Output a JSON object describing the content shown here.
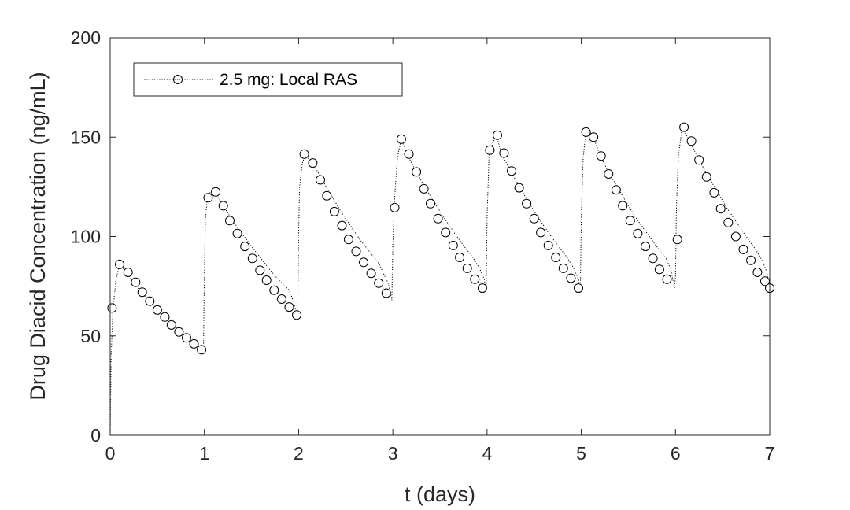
{
  "chart_data": {
    "type": "line",
    "title": "",
    "xlabel": "t (days)",
    "ylabel": "Drug Diacid Concentration (ng/mL)",
    "xlim": [
      0,
      7
    ],
    "ylim": [
      0,
      200
    ],
    "xticks": [
      "0",
      "1",
      "2",
      "3",
      "4",
      "5",
      "6",
      "7"
    ],
    "yticks": [
      "0",
      "50",
      "100",
      "150",
      "200"
    ],
    "grid": false,
    "legend_position": "top-left",
    "colors": {
      "line": "#000000",
      "marker": "#000000",
      "axes": "#262626"
    },
    "series": [
      {
        "name": "2.5 mg: Local RAS",
        "line_style": "dotted",
        "marker": "circle",
        "line": [
          [
            0,
            0
          ],
          [
            0.01,
            40
          ],
          [
            0.03,
            63
          ],
          [
            0.06,
            78
          ],
          [
            0.1,
            86
          ],
          [
            0.17,
            82
          ],
          [
            0.25,
            77
          ],
          [
            0.33,
            72
          ],
          [
            0.42,
            67.5
          ],
          [
            0.5,
            63
          ],
          [
            0.58,
            59.5
          ],
          [
            0.67,
            55.5
          ],
          [
            0.75,
            52
          ],
          [
            0.83,
            49
          ],
          [
            0.92,
            46
          ],
          [
            0.97,
            43
          ],
          [
            0.99,
            42.5
          ],
          [
            1.0,
            80
          ],
          [
            1.01,
            108
          ],
          [
            1.03,
            119
          ],
          [
            1.06,
            122
          ],
          [
            1.1,
            123
          ],
          [
            1.2,
            115.5
          ],
          [
            1.3,
            108
          ],
          [
            1.4,
            101.5
          ],
          [
            1.5,
            95
          ],
          [
            1.6,
            89
          ],
          [
            1.7,
            83
          ],
          [
            1.8,
            77.5
          ],
          [
            1.9,
            73
          ],
          [
            1.95,
            66.5
          ],
          [
            1.99,
            59.5
          ],
          [
            2.0,
            100
          ],
          [
            2.01,
            125
          ],
          [
            2.04,
            137
          ],
          [
            2.07,
            141
          ],
          [
            2.15,
            137
          ],
          [
            2.25,
            128.5
          ],
          [
            2.35,
            120.5
          ],
          [
            2.45,
            112.5
          ],
          [
            2.55,
            105.5
          ],
          [
            2.65,
            98.5
          ],
          [
            2.75,
            92.5
          ],
          [
            2.85,
            86.5
          ],
          [
            2.9,
            81.5
          ],
          [
            2.95,
            76.5
          ],
          [
            2.99,
            68
          ],
          [
            3.0,
            95
          ],
          [
            3.02,
            120
          ],
          [
            3.05,
            140
          ],
          [
            3.09,
            149
          ],
          [
            3.15,
            141.5
          ],
          [
            3.25,
            132.5
          ],
          [
            3.35,
            124
          ],
          [
            3.45,
            116.5
          ],
          [
            3.55,
            109
          ],
          [
            3.65,
            102
          ],
          [
            3.75,
            95.5
          ],
          [
            3.85,
            89.5
          ],
          [
            3.92,
            84
          ],
          [
            3.97,
            78.5
          ],
          [
            3.99,
            73
          ],
          [
            4.0,
            110
          ],
          [
            4.02,
            140
          ],
          [
            4.06,
            147
          ],
          [
            4.1,
            151
          ],
          [
            4.15,
            142
          ],
          [
            4.25,
            133
          ],
          [
            4.35,
            124.5
          ],
          [
            4.45,
            116.5
          ],
          [
            4.55,
            109
          ],
          [
            4.65,
            102
          ],
          [
            4.75,
            95.5
          ],
          [
            4.85,
            89.5
          ],
          [
            4.92,
            84
          ],
          [
            4.97,
            78.5
          ],
          [
            4.99,
            73
          ],
          [
            5.0,
            110
          ],
          [
            5.02,
            140
          ],
          [
            5.05,
            152.5
          ],
          [
            5.13,
            150
          ],
          [
            5.2,
            140.5
          ],
          [
            5.3,
            131.5
          ],
          [
            5.4,
            123.5
          ],
          [
            5.5,
            115.5
          ],
          [
            5.6,
            108
          ],
          [
            5.7,
            101.5
          ],
          [
            5.8,
            95
          ],
          [
            5.9,
            89
          ],
          [
            5.95,
            83.5
          ],
          [
            5.99,
            74
          ],
          [
            6.0,
            80
          ],
          [
            6.01,
            115
          ],
          [
            6.03,
            140
          ],
          [
            6.07,
            155
          ],
          [
            6.15,
            148
          ],
          [
            6.25,
            138.5
          ],
          [
            6.35,
            130
          ],
          [
            6.45,
            122
          ],
          [
            6.55,
            114
          ],
          [
            6.65,
            107
          ],
          [
            6.75,
            100
          ],
          [
            6.85,
            93.5
          ],
          [
            6.92,
            88
          ],
          [
            6.97,
            82
          ],
          [
            7.0,
            74
          ]
        ],
        "markers": [
          [
            0.02,
            64
          ],
          [
            0.1,
            86
          ],
          [
            0.19,
            82
          ],
          [
            0.27,
            77
          ],
          [
            0.34,
            72
          ],
          [
            0.42,
            67.5
          ],
          [
            0.5,
            63
          ],
          [
            0.58,
            59.5
          ],
          [
            0.65,
            55.5
          ],
          [
            0.73,
            52
          ],
          [
            0.81,
            49
          ],
          [
            0.89,
            46
          ],
          [
            0.97,
            43
          ],
          [
            1.04,
            119.5
          ],
          [
            1.12,
            122.5
          ],
          [
            1.2,
            115.5
          ],
          [
            1.27,
            108
          ],
          [
            1.35,
            101.5
          ],
          [
            1.43,
            95
          ],
          [
            1.51,
            89
          ],
          [
            1.59,
            83
          ],
          [
            1.66,
            78
          ],
          [
            1.74,
            73
          ],
          [
            1.82,
            68.5
          ],
          [
            1.9,
            64.5
          ],
          [
            1.98,
            60.5
          ],
          [
            2.06,
            141.5
          ],
          [
            2.15,
            137
          ],
          [
            2.23,
            128.5
          ],
          [
            2.3,
            120.5
          ],
          [
            2.38,
            112.5
          ],
          [
            2.46,
            105.5
          ],
          [
            2.53,
            98.5
          ],
          [
            2.61,
            92.5
          ],
          [
            2.69,
            87
          ],
          [
            2.77,
            81.5
          ],
          [
            2.85,
            76.5
          ],
          [
            2.93,
            71.5
          ],
          [
            3.02,
            114.5
          ],
          [
            3.09,
            149
          ],
          [
            3.17,
            141.5
          ],
          [
            3.25,
            132.5
          ],
          [
            3.33,
            124
          ],
          [
            3.4,
            116.5
          ],
          [
            3.48,
            109
          ],
          [
            3.56,
            102
          ],
          [
            3.64,
            95.5
          ],
          [
            3.71,
            89.5
          ],
          [
            3.79,
            84
          ],
          [
            3.87,
            78.5
          ],
          [
            3.95,
            74
          ],
          [
            4.03,
            143.5
          ],
          [
            4.11,
            151
          ],
          [
            4.18,
            142
          ],
          [
            4.26,
            133
          ],
          [
            4.34,
            124.5
          ],
          [
            4.42,
            116.5
          ],
          [
            4.5,
            109
          ],
          [
            4.57,
            102
          ],
          [
            4.65,
            95.5
          ],
          [
            4.73,
            89.5
          ],
          [
            4.81,
            84
          ],
          [
            4.89,
            79
          ],
          [
            4.97,
            74
          ],
          [
            5.05,
            152.5
          ],
          [
            5.13,
            150
          ],
          [
            5.21,
            140.5
          ],
          [
            5.29,
            131.5
          ],
          [
            5.37,
            123.5
          ],
          [
            5.44,
            115.5
          ],
          [
            5.52,
            108
          ],
          [
            5.6,
            101.5
          ],
          [
            5.68,
            95
          ],
          [
            5.76,
            89
          ],
          [
            5.83,
            83.5
          ],
          [
            5.91,
            78.5
          ],
          [
            6.02,
            98.5
          ],
          [
            6.09,
            155
          ],
          [
            6.17,
            148
          ],
          [
            6.25,
            138.5
          ],
          [
            6.33,
            130
          ],
          [
            6.41,
            122
          ],
          [
            6.48,
            114
          ],
          [
            6.56,
            107
          ],
          [
            6.64,
            100
          ],
          [
            6.72,
            93.5
          ],
          [
            6.8,
            88
          ],
          [
            6.87,
            82
          ],
          [
            6.95,
            77.5
          ],
          [
            7.0,
            74
          ]
        ]
      }
    ]
  }
}
